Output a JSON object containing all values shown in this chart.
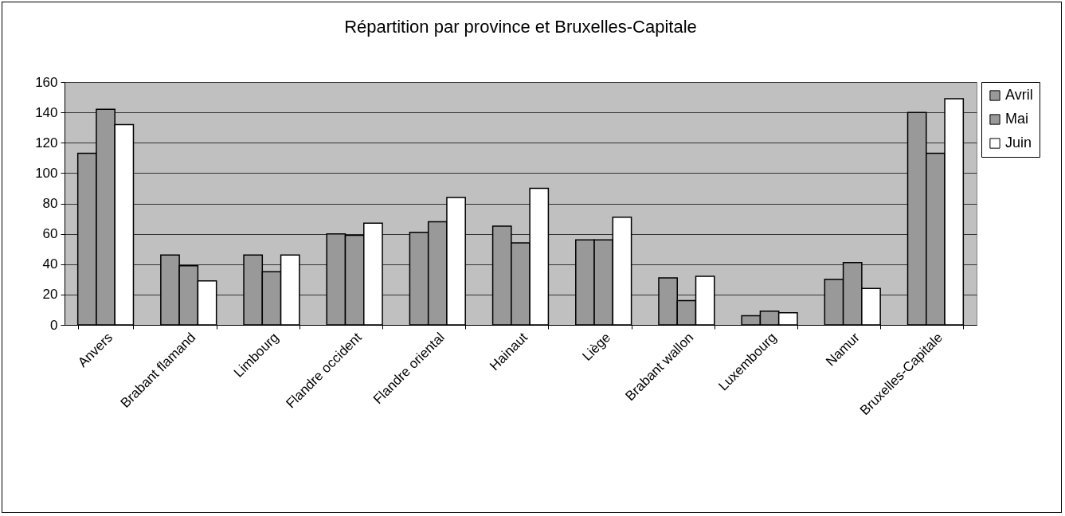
{
  "chart_data": {
    "type": "bar",
    "title": "Répartition par province et Bruxelles-Capitale",
    "categories": [
      "Anvers",
      "Brabant flamand",
      "Limbourg",
      "Flandre occident",
      "Flandre oriental",
      "Hainaut",
      "Liège",
      "Brabant wallon",
      "Luxembourg",
      "Namur",
      "Bruxelles-Capitale"
    ],
    "series": [
      {
        "name": "Avril",
        "color": "#999999",
        "values": [
          113,
          46,
          46,
          60,
          61,
          65,
          56,
          31,
          6,
          30,
          140
        ]
      },
      {
        "name": "Mai",
        "color": "#999999",
        "values": [
          142,
          39,
          35,
          59,
          68,
          54,
          56,
          16,
          9,
          41,
          113
        ]
      },
      {
        "name": "Juin",
        "color": "#ffffff",
        "values": [
          132,
          29,
          46,
          67,
          84,
          90,
          71,
          32,
          8,
          24,
          149
        ]
      }
    ],
    "ylim": [
      0,
      160
    ],
    "yticks": [
      0,
      20,
      40,
      60,
      80,
      100,
      120,
      140,
      160
    ],
    "grid": "y",
    "legend": "right"
  }
}
